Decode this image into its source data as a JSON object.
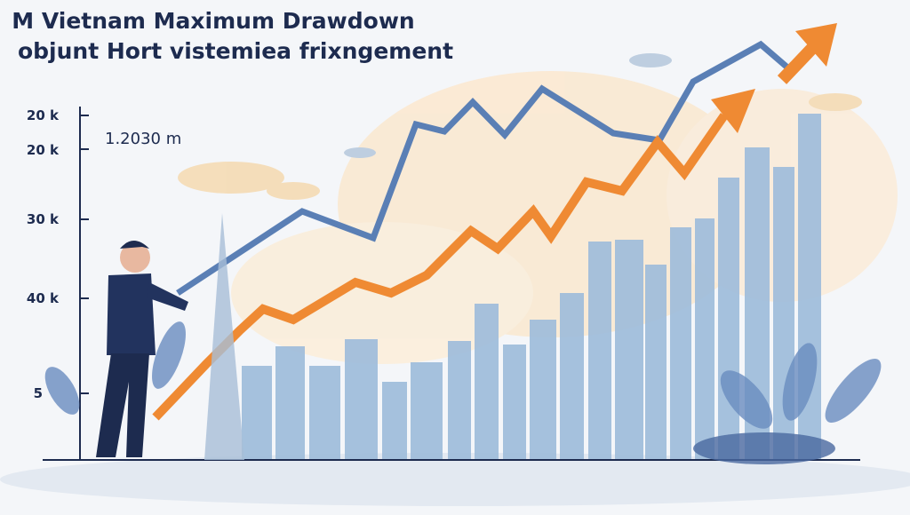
{
  "header": {
    "title_lines": [
      "M Vietnam Maximum Drawdown",
      "objunt Hort vistemiea frixngement"
    ]
  },
  "annotation": "1.2030 m",
  "axis": {
    "labels": [
      "20 k",
      "20 k",
      "30 k",
      "40 k",
      "5"
    ]
  }
}
